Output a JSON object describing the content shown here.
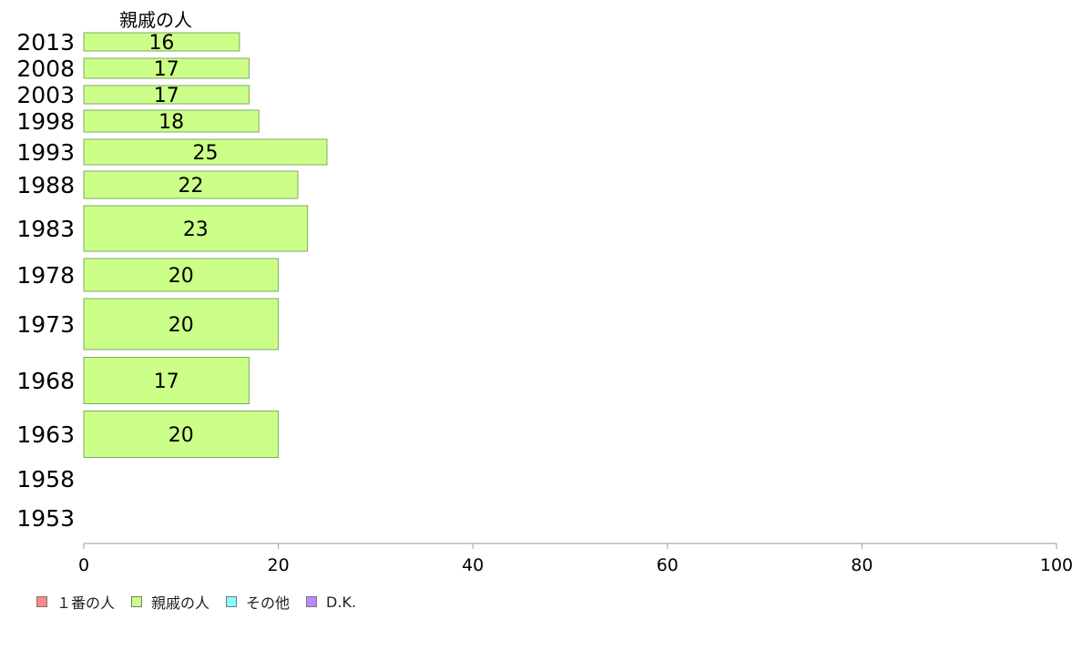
{
  "chart_data": {
    "type": "bar",
    "orientation": "horizontal",
    "series_title": "親戚の人",
    "categories": [
      "2013",
      "2008",
      "2003",
      "1998",
      "1993",
      "1988",
      "1983",
      "1978",
      "1973",
      "1968",
      "1963",
      "1958",
      "1953"
    ],
    "series": [
      {
        "name": "親戚の人",
        "color": "#ccff88",
        "values": [
          16,
          17,
          17,
          18,
          25,
          22,
          23,
          20,
          20,
          17,
          20,
          null,
          null
        ]
      }
    ],
    "xlim": [
      0,
      100
    ],
    "xticks": [
      0,
      20,
      40,
      60,
      80,
      100
    ],
    "legend_position": "bottom-left",
    "grid": false
  },
  "legend": [
    {
      "label": "１番の人",
      "color": "#ff8888"
    },
    {
      "label": "親戚の人",
      "color": "#ccff88"
    },
    {
      "label": "その他",
      "color": "#88ffff"
    },
    {
      "label": "D.K.",
      "color": "#bb88ff"
    }
  ]
}
